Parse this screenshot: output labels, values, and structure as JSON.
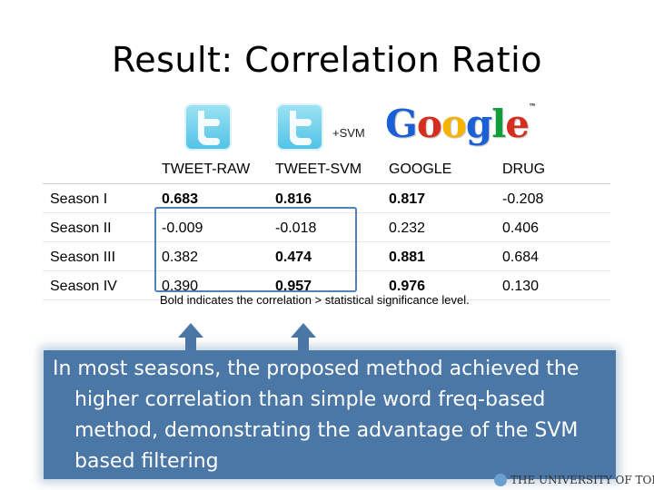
{
  "title": "Result: Correlation Ratio",
  "logos": {
    "twitter_raw": "twitter-logo",
    "twitter_svm": "twitter-logo",
    "svm_label": "+SVM",
    "google_letters": [
      "G",
      "o",
      "o",
      "g",
      "l",
      "e"
    ],
    "google_colors": [
      "#1a5fd6",
      "#d62d20",
      "#f4b400",
      "#1a5fd6",
      "#109d3a",
      "#d62d20"
    ],
    "university": "THE UNIVERSITY OF TOKYO"
  },
  "table": {
    "headers": [
      "",
      "TWEET-RAW",
      "TWEET-SVM",
      "GOOGLE",
      "DRUG"
    ],
    "rows": [
      {
        "cells": [
          "Season I",
          "0.683",
          "0.816",
          "0.817",
          "-0.208"
        ],
        "bold": [
          false,
          true,
          true,
          true,
          false
        ]
      },
      {
        "cells": [
          "Season II",
          "-0.009",
          "-0.018",
          "0.232",
          "0.406"
        ],
        "bold": [
          false,
          false,
          false,
          false,
          false
        ]
      },
      {
        "cells": [
          "Season III",
          "0.382",
          "0.474",
          "0.881",
          "0.684"
        ],
        "bold": [
          false,
          false,
          true,
          true,
          false
        ]
      },
      {
        "cells": [
          "Season IV",
          "0.390",
          "0.957",
          "0.976",
          "0.130"
        ],
        "bold": [
          false,
          false,
          true,
          true,
          false
        ]
      }
    ]
  },
  "footnote": "Bold indicates the correlation > statistical significance level.",
  "callout": "In most seasons, the proposed method achieved the higher correlation than simple word freq-based method, demonstrating the advantage of the SVM based filtering",
  "colors": {
    "callout_bg": "#4a77a5",
    "highlight_border": "#4f81bd",
    "arrow": "#4a77a5"
  }
}
